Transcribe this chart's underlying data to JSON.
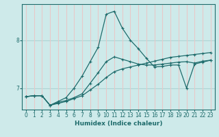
{
  "xlabel": "Humidex (Indice chaleur)",
  "background_color": "#ceeaea",
  "vgrid_color": "#e8c8c8",
  "hgrid_color": "#aed4d4",
  "line_color": "#1e6b6b",
  "xlim": [
    -0.5,
    23.5
  ],
  "ylim": [
    6.55,
    8.75
  ],
  "yticks": [
    7,
    8
  ],
  "xticks": [
    0,
    1,
    2,
    3,
    4,
    5,
    6,
    7,
    8,
    9,
    10,
    11,
    12,
    13,
    14,
    15,
    16,
    17,
    18,
    19,
    20,
    21,
    22,
    23
  ],
  "line1_x": [
    0,
    1,
    2,
    3,
    4,
    5,
    6,
    7,
    8,
    9,
    10,
    11,
    12,
    13,
    14,
    15,
    16,
    17,
    18,
    19,
    20,
    21,
    22,
    23
  ],
  "line1_y": [
    6.82,
    6.84,
    6.84,
    6.64,
    6.7,
    6.74,
    6.8,
    6.88,
    7.1,
    7.32,
    7.55,
    7.65,
    7.6,
    7.55,
    7.5,
    7.48,
    7.48,
    7.5,
    7.52,
    7.54,
    7.55,
    7.52,
    7.56,
    7.58
  ],
  "line2_x": [
    0,
    1,
    2,
    3,
    4,
    5,
    6,
    7,
    8,
    9,
    10,
    11,
    12,
    13,
    14,
    15,
    16,
    17,
    18,
    19,
    20,
    21,
    22,
    23
  ],
  "line2_y": [
    6.82,
    6.84,
    6.84,
    6.64,
    6.72,
    6.8,
    7.0,
    7.25,
    7.55,
    7.85,
    8.54,
    8.6,
    8.25,
    8.0,
    7.82,
    7.62,
    7.44,
    7.45,
    7.48,
    7.48,
    7.0,
    7.5,
    7.54,
    7.58
  ],
  "line3_x": [
    0,
    1,
    2,
    3,
    4,
    5,
    6,
    7,
    8,
    9,
    10,
    11,
    12,
    13,
    14,
    15,
    16,
    17,
    18,
    19,
    20,
    21,
    22,
    23
  ],
  "line3_y": [
    6.82,
    6.84,
    6.84,
    6.64,
    6.68,
    6.72,
    6.78,
    6.84,
    6.96,
    7.08,
    7.22,
    7.34,
    7.4,
    7.44,
    7.48,
    7.52,
    7.56,
    7.6,
    7.64,
    7.66,
    7.68,
    7.7,
    7.72,
    7.74
  ]
}
